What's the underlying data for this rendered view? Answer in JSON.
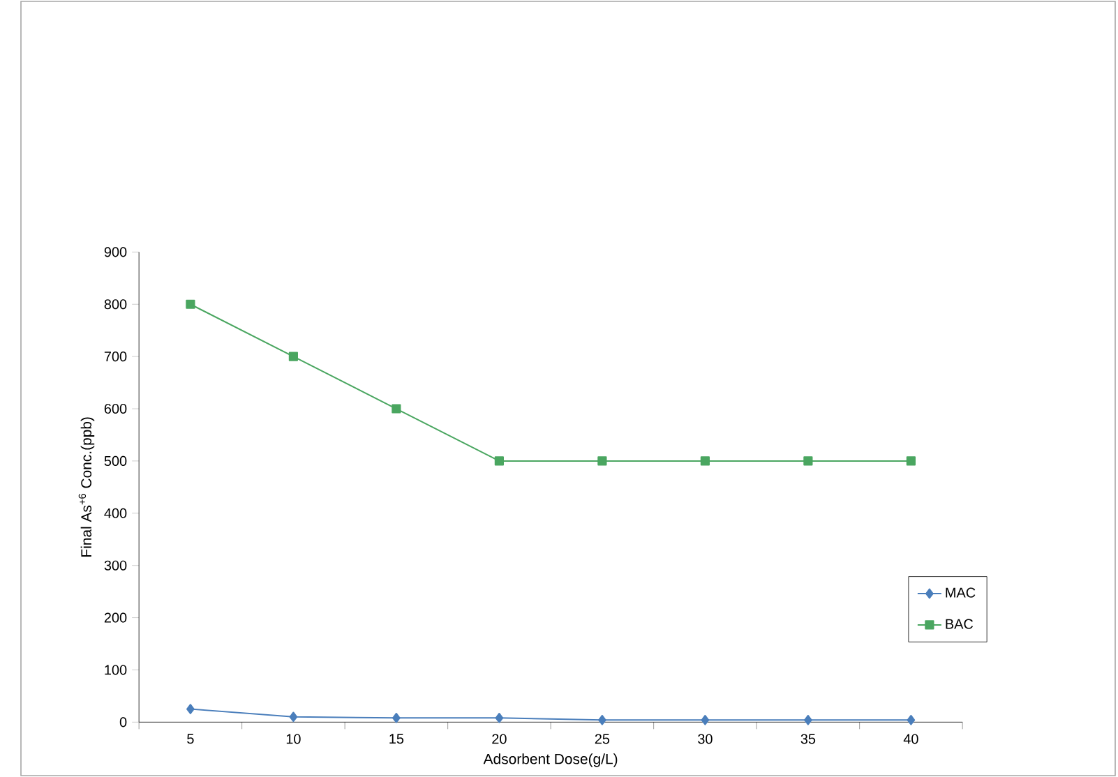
{
  "chart_data": {
    "type": "line",
    "xlabel": "Adsorbent Dose(g/L)",
    "ylabel": "Final As$^{+6}$ Conc.(ppb)",
    "categories": [
      "5",
      "10",
      "15",
      "20",
      "25",
      "30",
      "35",
      "40"
    ],
    "series": [
      {
        "name": "MAC",
        "color": "#4a7ebb",
        "marker": "diamond",
        "values": [
          25,
          10,
          8,
          8,
          4,
          4,
          4,
          4
        ]
      },
      {
        "name": "BAC",
        "color": "#4aa660",
        "marker": "square",
        "values": [
          800,
          700,
          600,
          500,
          500,
          500,
          500,
          500
        ]
      }
    ],
    "ylim": [
      0,
      900
    ],
    "yticks": [
      0,
      100,
      200,
      300,
      400,
      500,
      600,
      700,
      800,
      900
    ],
    "grid": false,
    "legend": "right"
  }
}
